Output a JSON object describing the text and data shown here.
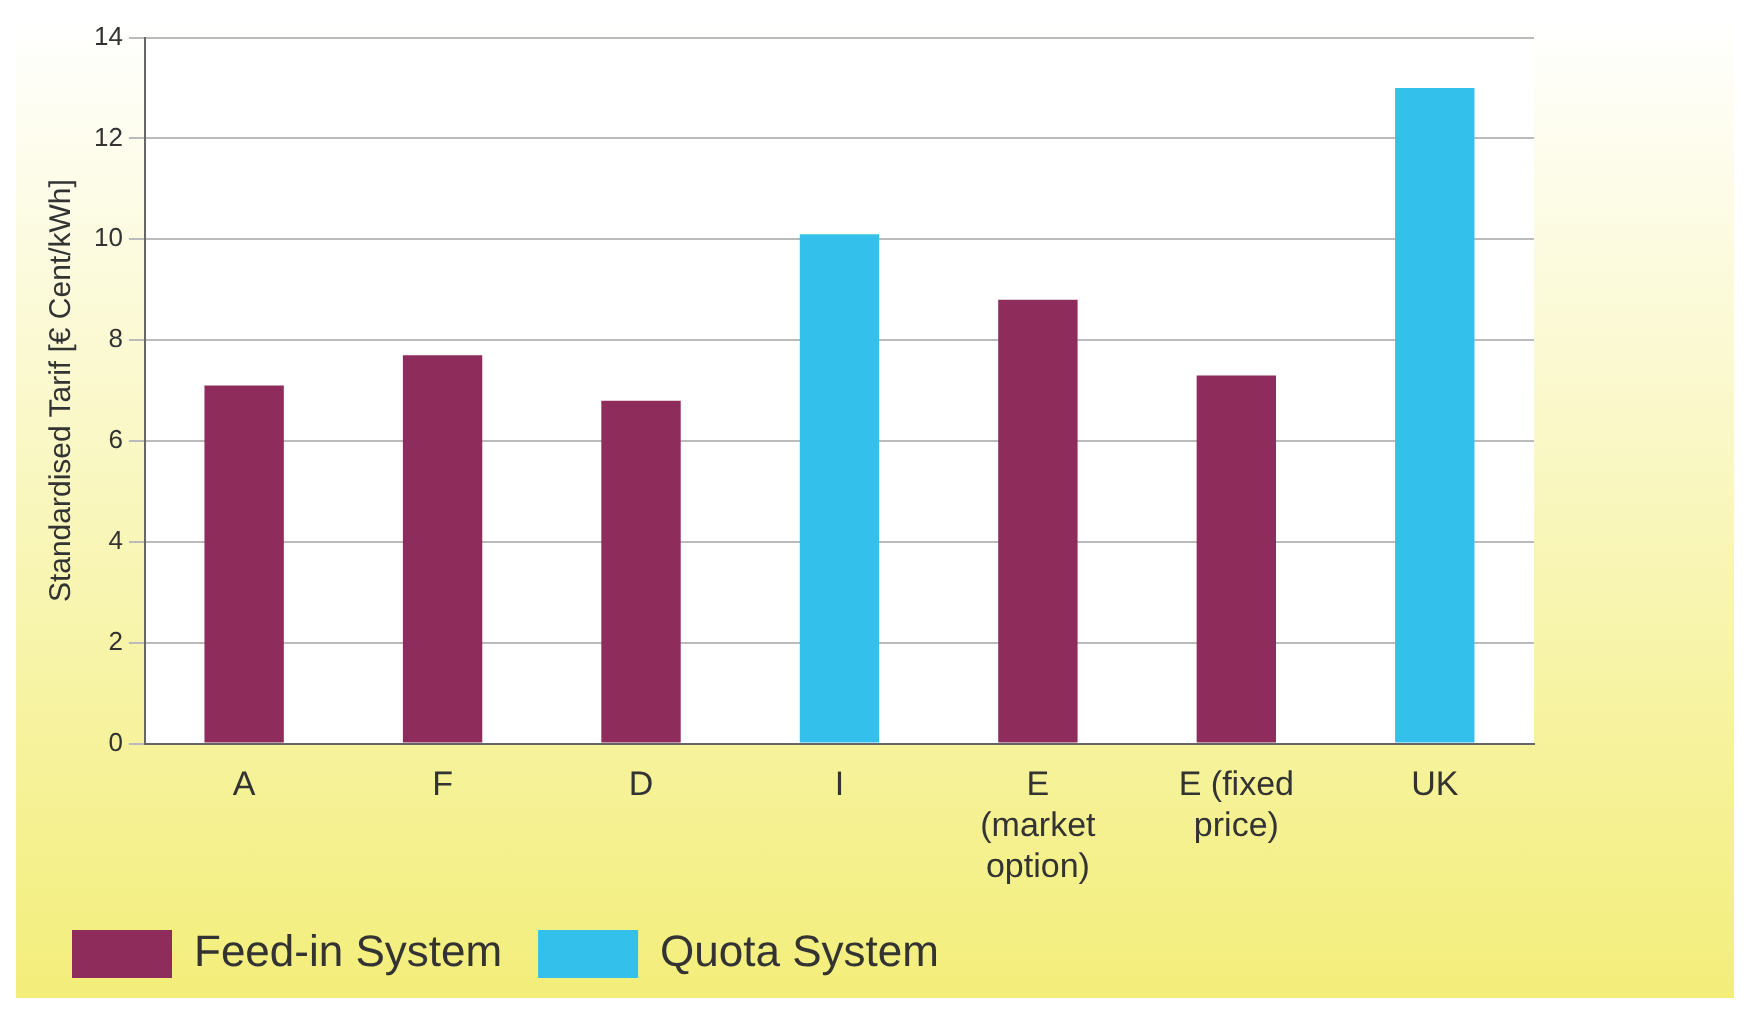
{
  "chart_data": {
    "type": "bar",
    "ylabel": "Standardised Tarif [€ Cent/kWh]",
    "categories": [
      "A",
      "F",
      "D",
      "I",
      "E (market option)",
      "E (fixed price)",
      "UK"
    ],
    "series": [
      {
        "name": "Feed-in System",
        "color": "#8e2c5b",
        "values": [
          7.1,
          7.7,
          6.8,
          null,
          8.8,
          7.3,
          null
        ]
      },
      {
        "name": "Quota System",
        "color": "#33c1ec",
        "values": [
          null,
          null,
          null,
          10.1,
          null,
          null,
          13.0
        ]
      }
    ],
    "ylim": [
      0,
      14
    ],
    "yticks": [
      0,
      2,
      4,
      6,
      8,
      10,
      12,
      14
    ],
    "grid": "y",
    "legend": "bottom"
  }
}
